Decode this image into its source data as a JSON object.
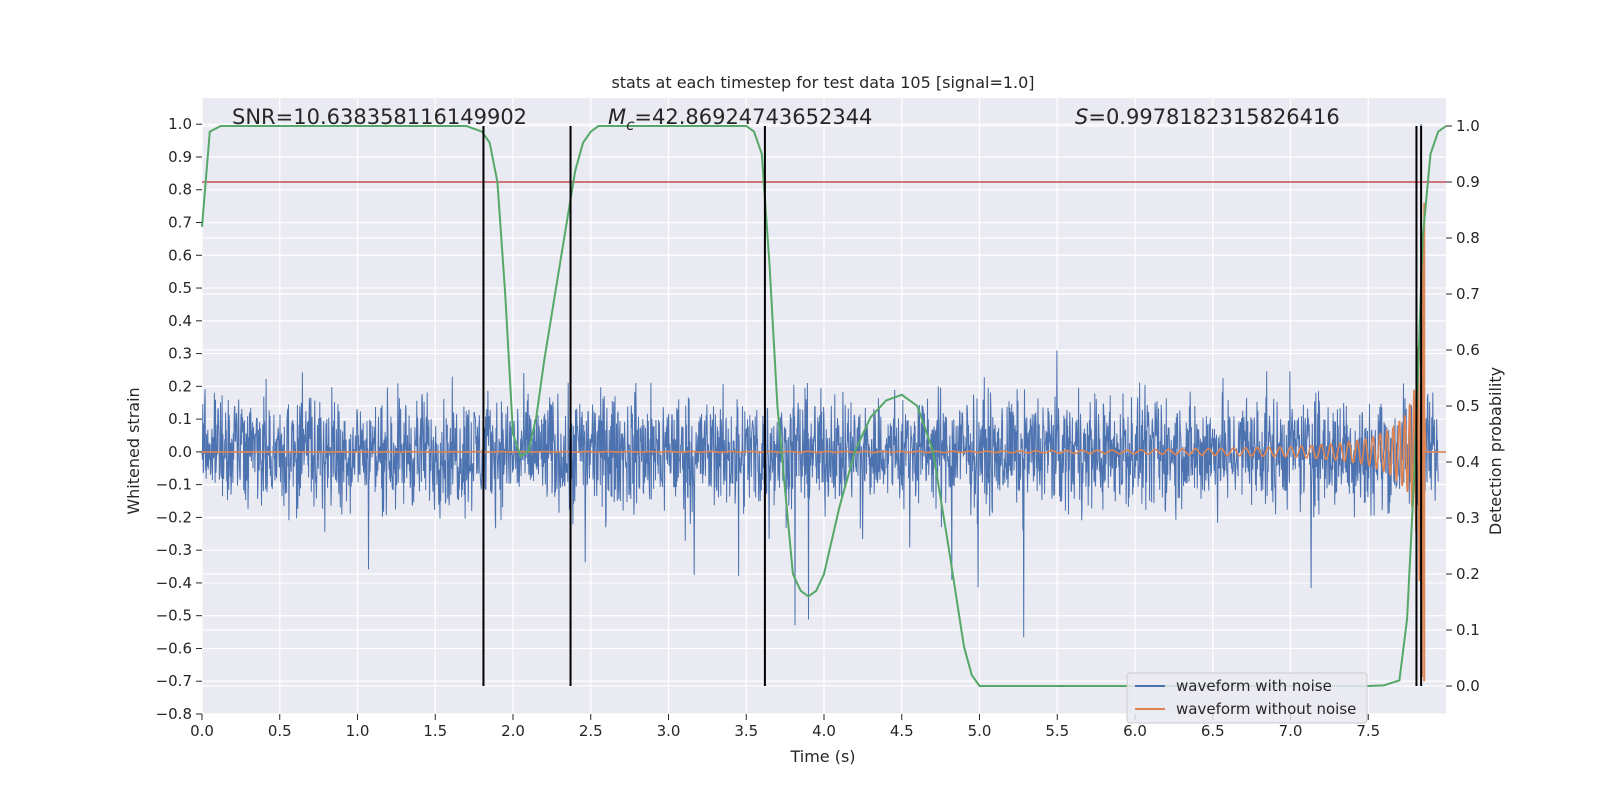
{
  "chart_data": {
    "type": "line",
    "title": "stats at each timestep for test data 105 [signal=1.0]",
    "xlabel": "Time (s)",
    "ylabel": "Whitened strain",
    "y2label": "Detection probability",
    "xlim": [
      0.0,
      8.0
    ],
    "ylim": [
      -0.8,
      1.08
    ],
    "y2lim": [
      -0.05,
      1.05
    ],
    "xticks": [
      0.0,
      0.5,
      1.0,
      1.5,
      2.0,
      2.5,
      3.0,
      3.5,
      4.0,
      4.5,
      5.0,
      5.5,
      6.0,
      6.5,
      7.0,
      7.5
    ],
    "yticks": [
      -0.8,
      -0.7,
      -0.6,
      -0.5,
      -0.4,
      -0.3,
      -0.2,
      -0.1,
      0.0,
      0.1,
      0.2,
      0.3,
      0.4,
      0.5,
      0.6,
      0.7,
      0.8,
      0.9,
      1.0
    ],
    "y2ticks": [
      0.0,
      0.1,
      0.2,
      0.3,
      0.4,
      0.5,
      0.6,
      0.7,
      0.8,
      0.9,
      1.0
    ],
    "grid": true,
    "legend_position": "lower-right",
    "annotations": {
      "snr": "SNR=10.638358116149902",
      "mc_symbol": "M",
      "mc_sub": "c",
      "mc_value": "=42.86924743652344",
      "s_symbol": "S",
      "s_value": "=0.9978182315826416"
    },
    "series": [
      {
        "name": "waveform with noise",
        "color": "#4c72b0",
        "axis": "left",
        "description_values": "noise with envelope approximately ±0.2 (peaks up to 0.45 and down to -0.63)"
      },
      {
        "name": "waveform without noise",
        "color": "#dd8452",
        "axis": "left",
        "x": [
          0.0,
          5.0,
          6.0,
          6.5,
          7.0,
          7.3,
          7.5,
          7.65,
          7.75,
          7.8,
          7.83,
          7.85,
          7.87,
          7.9,
          8.0
        ],
        "amplitude": [
          0.0,
          0.002,
          0.006,
          0.01,
          0.015,
          0.025,
          0.04,
          0.07,
          0.12,
          0.2,
          0.4,
          0.75,
          0.0,
          0.0,
          0.0
        ]
      },
      {
        "name": "detection probability",
        "color": "#55a868",
        "axis": "right",
        "x": [
          0.0,
          0.05,
          0.12,
          0.3,
          1.0,
          1.5,
          1.7,
          1.8,
          1.85,
          1.9,
          1.95,
          2.0,
          2.05,
          2.1,
          2.15,
          2.2,
          2.3,
          2.4,
          2.45,
          2.5,
          2.55,
          2.7,
          3.0,
          3.5,
          3.55,
          3.6,
          3.65,
          3.7,
          3.75,
          3.8,
          3.85,
          3.9,
          3.95,
          4.0,
          4.1,
          4.2,
          4.3,
          4.4,
          4.5,
          4.6,
          4.7,
          4.8,
          4.9,
          4.95,
          5.0,
          5.5,
          6.0,
          7.0,
          7.5,
          7.6,
          7.7,
          7.75,
          7.8,
          7.85,
          7.9,
          7.95,
          8.0
        ],
        "values": [
          0.82,
          0.99,
          1.0,
          1.0,
          1.0,
          1.0,
          1.0,
          0.99,
          0.97,
          0.9,
          0.7,
          0.45,
          0.41,
          0.42,
          0.48,
          0.58,
          0.75,
          0.92,
          0.97,
          0.99,
          1.0,
          1.0,
          1.0,
          1.0,
          0.99,
          0.95,
          0.75,
          0.5,
          0.35,
          0.2,
          0.17,
          0.16,
          0.17,
          0.2,
          0.32,
          0.42,
          0.48,
          0.51,
          0.52,
          0.5,
          0.42,
          0.25,
          0.07,
          0.02,
          0.0,
          0.0,
          0.0,
          0.0,
          0.0,
          0.001,
          0.01,
          0.12,
          0.4,
          0.8,
          0.95,
          0.99,
          1.0
        ]
      }
    ],
    "threshold_line": {
      "value": 0.9,
      "axis": "right",
      "color": "#c44e52"
    },
    "detection_boundaries": [
      1.81,
      2.37,
      3.62,
      7.81,
      7.84
    ],
    "boundary_color": "#000000"
  }
}
